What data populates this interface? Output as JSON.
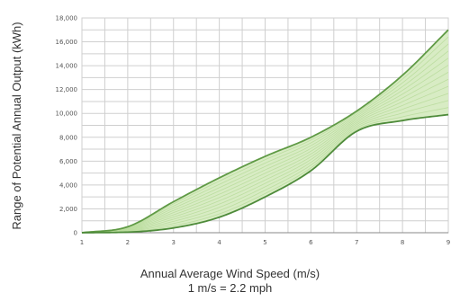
{
  "chart_data": {
    "type": "area",
    "title": "",
    "xlabel": "Annual Average Wind Speed (m/s)",
    "xlabel_note": "1 m/s = 2.2 mph",
    "ylabel": "Range of Potential Annual Output (kWh)",
    "xlim": [
      1,
      9
    ],
    "ylim": [
      0,
      18000
    ],
    "x_ticks": [
      "1",
      "2",
      "3",
      "4",
      "5",
      "6",
      "7",
      "8",
      "9"
    ],
    "y_ticks": [
      "0",
      "2,000",
      "4,000",
      "6,000",
      "8,000",
      "10,000",
      "12,000",
      "14,000",
      "16,000",
      "18,000"
    ],
    "grid": true,
    "x": [
      1,
      2,
      3,
      4,
      5,
      6,
      7,
      8,
      9
    ],
    "series": [
      {
        "values": [
          0,
          500,
          2600,
          4600,
          6400,
          8000,
          10200,
          13200,
          17000
        ]
      },
      {
        "values": [
          0,
          50,
          400,
          1300,
          3000,
          5200,
          8500,
          9400,
          9900
        ]
      }
    ],
    "colors": {
      "upper_line": "#5f9a45",
      "lower_line": "#4e8b3a",
      "band_fill": "#d8ecc4",
      "inner_curves": "#b9db9c",
      "grid": "#cfcfcf"
    }
  }
}
